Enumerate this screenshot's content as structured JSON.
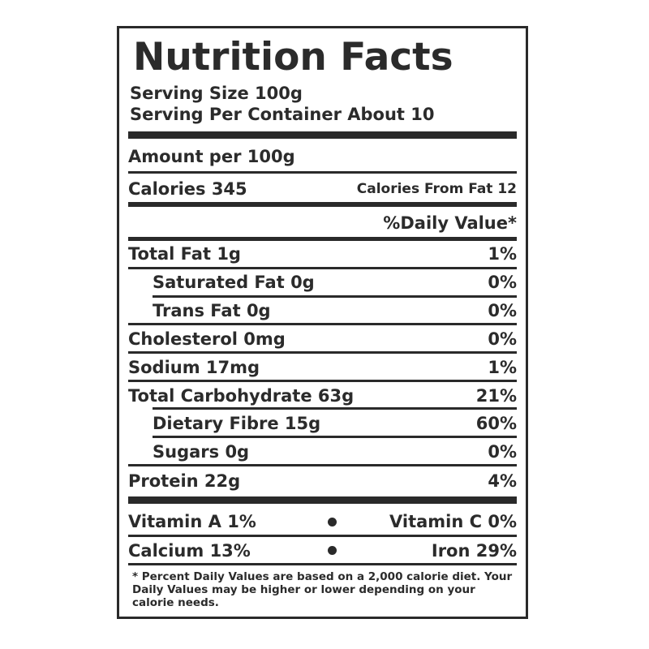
{
  "title": "Nutrition Facts",
  "serving_size": "Serving Size 100g",
  "servings_per_container": "Serving Per Container About 10",
  "amount_per": "Amount per 100g",
  "calories": "Calories 345",
  "calories_from_fat": "Calories From Fat 12",
  "daily_value_header": "%Daily Value*",
  "nutrients": [
    {
      "label": "Total Fat 1g",
      "dv": "1%"
    },
    {
      "label": "Saturated Fat 0g",
      "dv": "0%"
    },
    {
      "label": "Trans Fat 0g",
      "dv": "0%"
    },
    {
      "label": "Cholesterol 0mg",
      "dv": "0%"
    },
    {
      "label": "Sodium 17mg",
      "dv": "1%"
    },
    {
      "label": "Total Carbohydrate 63g",
      "dv": "21%"
    },
    {
      "label": "Dietary Fibre 15g",
      "dv": "60%"
    },
    {
      "label": "Sugars 0g",
      "dv": "0%"
    },
    {
      "label": "Protein 22g",
      "dv": "4%"
    }
  ],
  "vitamins": [
    {
      "left": "Vitamin A 1%",
      "right": "Vitamin C 0%"
    },
    {
      "left": "Calcium 13%",
      "right": "Iron 29%"
    }
  ],
  "footnote": "* Percent Daily Values are based on a 2,000 calorie diet. Your Daily Values may be higher or lower depending on your calorie needs."
}
